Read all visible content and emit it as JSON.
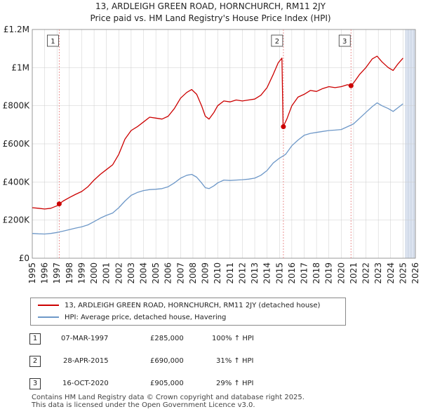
{
  "title_line1": "13, ARDLEIGH GREEN ROAD, HORNCHURCH, RM11 2JY",
  "title_line2": "Price paid vs. HM Land Registry's House Price Index (HPI)",
  "colors": {
    "property": "#cc0000",
    "hpi": "#6e98c8",
    "shade": "#dde4f0",
    "vline": "#e88888",
    "grid": "#cccccc"
  },
  "chart_data": {
    "type": "line",
    "title": "Price paid vs. HM Land Registry's House Price Index (HPI)",
    "xlim": [
      1995,
      2026
    ],
    "ylim": [
      0,
      1200000
    ],
    "x_ticks": [
      "1995",
      "1996",
      "1997",
      "1998",
      "1999",
      "2000",
      "2001",
      "2002",
      "2003",
      "2004",
      "2005",
      "2006",
      "2007",
      "2008",
      "2009",
      "2010",
      "2011",
      "2012",
      "2013",
      "2014",
      "2015",
      "2016",
      "2017",
      "2018",
      "2019",
      "2020",
      "2021",
      "2022",
      "2023",
      "2024",
      "2025",
      "2026"
    ],
    "y_ticks": [
      {
        "value": 0,
        "label": "£0"
      },
      {
        "value": 200000,
        "label": "£200K"
      },
      {
        "value": 400000,
        "label": "£400K"
      },
      {
        "value": 600000,
        "label": "£600K"
      },
      {
        "value": 800000,
        "label": "£800K"
      },
      {
        "value": 1000000,
        "label": "£1M"
      },
      {
        "value": 1200000,
        "label": "£1.2M"
      }
    ],
    "future_shade_from": 2025.2,
    "series": [
      {
        "name": "13, ARDLEIGH GREEN ROAD, HORNCHURCH, RM11 2JY (detached house)",
        "color": "#cc0000",
        "points": [
          [
            1995.0,
            265000
          ],
          [
            1995.5,
            262000
          ],
          [
            1996.0,
            258000
          ],
          [
            1996.5,
            262000
          ],
          [
            1997.0,
            275000
          ],
          [
            1997.18,
            285000
          ],
          [
            1997.5,
            300000
          ],
          [
            1998.0,
            318000
          ],
          [
            1998.5,
            335000
          ],
          [
            1999.0,
            350000
          ],
          [
            1999.5,
            375000
          ],
          [
            2000.0,
            410000
          ],
          [
            2000.5,
            440000
          ],
          [
            2001.0,
            465000
          ],
          [
            2001.5,
            490000
          ],
          [
            2002.0,
            545000
          ],
          [
            2002.5,
            625000
          ],
          [
            2003.0,
            670000
          ],
          [
            2003.5,
            690000
          ],
          [
            2004.0,
            715000
          ],
          [
            2004.5,
            740000
          ],
          [
            2005.0,
            735000
          ],
          [
            2005.5,
            730000
          ],
          [
            2006.0,
            745000
          ],
          [
            2006.5,
            785000
          ],
          [
            2007.0,
            840000
          ],
          [
            2007.5,
            870000
          ],
          [
            2007.9,
            885000
          ],
          [
            2008.3,
            860000
          ],
          [
            2008.7,
            800000
          ],
          [
            2009.0,
            745000
          ],
          [
            2009.3,
            730000
          ],
          [
            2009.7,
            765000
          ],
          [
            2010.0,
            800000
          ],
          [
            2010.5,
            825000
          ],
          [
            2011.0,
            820000
          ],
          [
            2011.5,
            830000
          ],
          [
            2012.0,
            825000
          ],
          [
            2012.5,
            830000
          ],
          [
            2013.0,
            835000
          ],
          [
            2013.5,
            855000
          ],
          [
            2014.0,
            895000
          ],
          [
            2014.5,
            965000
          ],
          [
            2014.9,
            1025000
          ],
          [
            2015.2,
            1050000
          ],
          [
            2015.3,
            690000
          ],
          [
            2015.6,
            730000
          ],
          [
            2016.0,
            800000
          ],
          [
            2016.5,
            845000
          ],
          [
            2017.0,
            860000
          ],
          [
            2017.5,
            880000
          ],
          [
            2018.0,
            875000
          ],
          [
            2018.5,
            890000
          ],
          [
            2019.0,
            900000
          ],
          [
            2019.5,
            895000
          ],
          [
            2020.0,
            900000
          ],
          [
            2020.5,
            910000
          ],
          [
            2020.79,
            905000
          ],
          [
            2021.0,
            920000
          ],
          [
            2021.5,
            965000
          ],
          [
            2022.0,
            1000000
          ],
          [
            2022.5,
            1045000
          ],
          [
            2022.9,
            1060000
          ],
          [
            2023.3,
            1030000
          ],
          [
            2023.8,
            1000000
          ],
          [
            2024.2,
            985000
          ],
          [
            2024.6,
            1020000
          ],
          [
            2025.0,
            1050000
          ]
        ]
      },
      {
        "name": "HPI: Average price, detached house, Havering",
        "color": "#6e98c8",
        "points": [
          [
            1995.0,
            130000
          ],
          [
            1995.5,
            128000
          ],
          [
            1996.0,
            127000
          ],
          [
            1996.5,
            130000
          ],
          [
            1997.0,
            135000
          ],
          [
            1997.5,
            142000
          ],
          [
            1998.0,
            150000
          ],
          [
            1998.5,
            158000
          ],
          [
            1999.0,
            165000
          ],
          [
            1999.5,
            175000
          ],
          [
            2000.0,
            192000
          ],
          [
            2000.5,
            210000
          ],
          [
            2001.0,
            225000
          ],
          [
            2001.5,
            237000
          ],
          [
            2002.0,
            265000
          ],
          [
            2002.5,
            300000
          ],
          [
            2003.0,
            330000
          ],
          [
            2003.5,
            345000
          ],
          [
            2004.0,
            355000
          ],
          [
            2004.5,
            360000
          ],
          [
            2005.0,
            362000
          ],
          [
            2005.5,
            365000
          ],
          [
            2006.0,
            375000
          ],
          [
            2006.5,
            395000
          ],
          [
            2007.0,
            420000
          ],
          [
            2007.5,
            435000
          ],
          [
            2007.9,
            440000
          ],
          [
            2008.3,
            425000
          ],
          [
            2008.7,
            395000
          ],
          [
            2009.0,
            370000
          ],
          [
            2009.3,
            365000
          ],
          [
            2009.7,
            380000
          ],
          [
            2010.0,
            395000
          ],
          [
            2010.5,
            410000
          ],
          [
            2011.0,
            408000
          ],
          [
            2011.5,
            410000
          ],
          [
            2012.0,
            412000
          ],
          [
            2012.5,
            415000
          ],
          [
            2013.0,
            420000
          ],
          [
            2013.5,
            435000
          ],
          [
            2014.0,
            460000
          ],
          [
            2014.5,
            500000
          ],
          [
            2015.0,
            525000
          ],
          [
            2015.5,
            545000
          ],
          [
            2016.0,
            590000
          ],
          [
            2016.5,
            620000
          ],
          [
            2017.0,
            645000
          ],
          [
            2017.5,
            655000
          ],
          [
            2018.0,
            660000
          ],
          [
            2018.5,
            665000
          ],
          [
            2019.0,
            670000
          ],
          [
            2019.5,
            672000
          ],
          [
            2020.0,
            675000
          ],
          [
            2020.5,
            690000
          ],
          [
            2021.0,
            705000
          ],
          [
            2021.5,
            735000
          ],
          [
            2022.0,
            765000
          ],
          [
            2022.5,
            795000
          ],
          [
            2022.9,
            815000
          ],
          [
            2023.3,
            800000
          ],
          [
            2023.8,
            785000
          ],
          [
            2024.2,
            770000
          ],
          [
            2024.6,
            790000
          ],
          [
            2025.0,
            810000
          ]
        ]
      }
    ],
    "annotations": [
      {
        "label": "1",
        "x": 1997.18,
        "price": 285000
      },
      {
        "label": "2",
        "x": 2015.32,
        "price": 690000
      },
      {
        "label": "3",
        "x": 2020.79,
        "price": 905000
      }
    ]
  },
  "legend": {
    "property_label": "13, ARDLEIGH GREEN ROAD, HORNCHURCH, RM11 2JY (detached house)",
    "hpi_label": "HPI: Average price, detached house, Havering"
  },
  "sales": [
    {
      "num": "1",
      "date": "07-MAR-1997",
      "price": "£285,000",
      "hpi": "100% ↑ HPI"
    },
    {
      "num": "2",
      "date": "28-APR-2015",
      "price": "£690,000",
      "hpi": "31% ↑ HPI"
    },
    {
      "num": "3",
      "date": "16-OCT-2020",
      "price": "£905,000",
      "hpi": "29% ↑ HPI"
    }
  ],
  "footer": {
    "line1": "Contains HM Land Registry data © Crown copyright and database right 2025.",
    "line2": "This data is licensed under the Open Government Licence v3.0."
  }
}
